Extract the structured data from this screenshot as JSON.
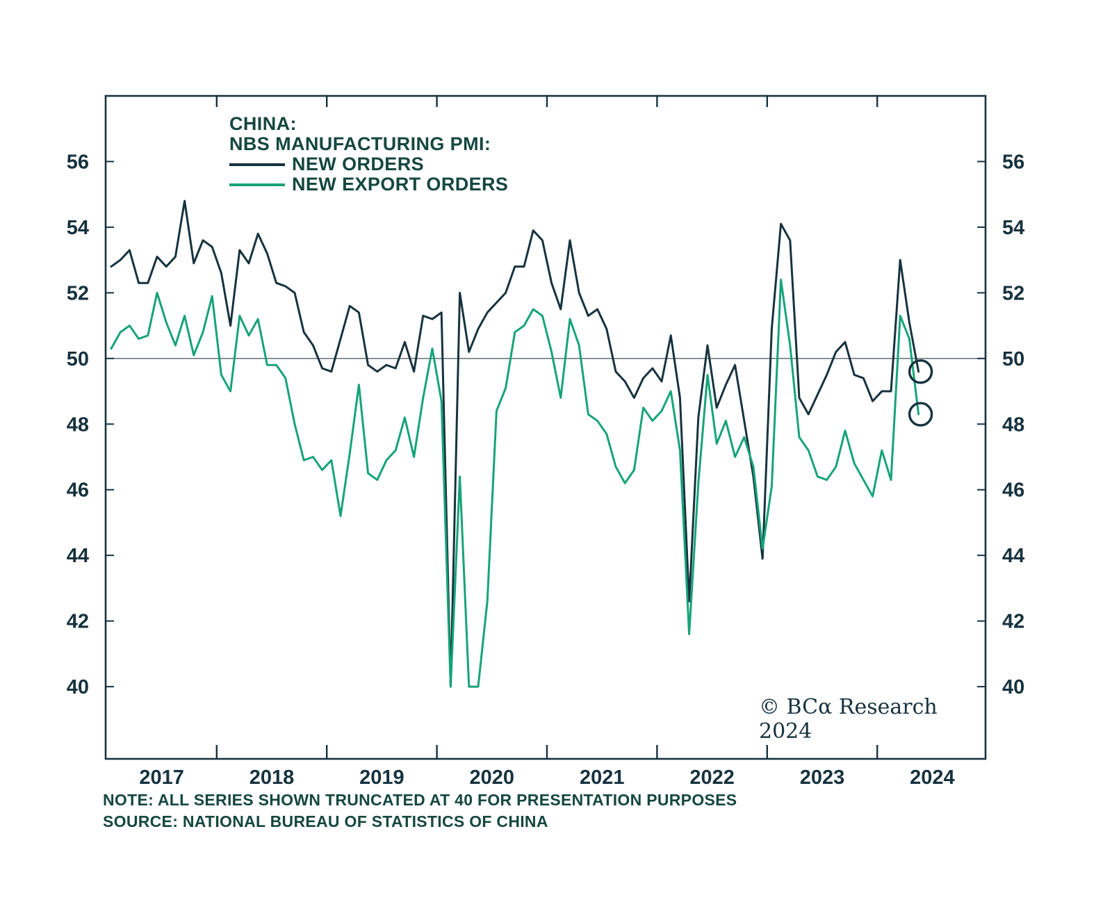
{
  "header": {
    "title_lines": [
      "CHINA:",
      "NBS MANUFACTURING PMI:"
    ]
  },
  "legend": [
    {
      "label": "NEW ORDERS",
      "color": "#16323e"
    },
    {
      "label": "NEW EXPORT ORDERS",
      "color": "#16a379"
    }
  ],
  "copyright_text": "© BCα Research 2024",
  "notes": {
    "line1": "NOTE: ALL SERIES SHOWN TRUNCATED AT 40 FOR PRESENTATION PURPOSES",
    "line2": "SOURCE: NATIONAL BUREAU OF STATISTICS OF CHINA"
  },
  "colors": {
    "new_orders_line": "#16323e",
    "new_export_orders_line": "#16a379",
    "heading_text": "#15473f",
    "axis": "#16323e",
    "reference_line": "#6e7b80"
  },
  "chart_data": {
    "type": "line",
    "title": "CHINA: NBS MANUFACTURING PMI — NEW ORDERS vs NEW EXPORT ORDERS",
    "xlabel": "",
    "ylabel": "",
    "frequency": "monthly",
    "x_start": "2017-01",
    "x_end": "2024-05",
    "x_tick_labels": [
      "2017",
      "2018",
      "2019",
      "2020",
      "2021",
      "2022",
      "2023",
      "2024"
    ],
    "y_ticks": [
      40,
      42,
      44,
      46,
      48,
      50,
      52,
      54,
      56
    ],
    "ylim": [
      37.8,
      58.0
    ],
    "reference_line": 50,
    "truncated_at": 40,
    "grid": false,
    "legend_position": "top-left-inside",
    "series": [
      {
        "name": "NEW ORDERS",
        "color": "#16323e",
        "values": [
          52.8,
          53.0,
          53.3,
          52.3,
          52.3,
          53.1,
          52.8,
          53.1,
          54.8,
          52.9,
          53.6,
          53.4,
          52.6,
          51.0,
          53.3,
          52.9,
          53.8,
          53.2,
          52.3,
          52.2,
          52.0,
          50.8,
          50.4,
          49.7,
          49.6,
          50.6,
          51.6,
          51.4,
          49.8,
          49.6,
          49.8,
          49.7,
          50.5,
          49.6,
          51.3,
          51.2,
          51.4,
          40.0,
          52.0,
          50.2,
          50.9,
          51.4,
          51.7,
          52.0,
          52.8,
          52.8,
          53.9,
          53.6,
          52.3,
          51.5,
          53.6,
          52.0,
          51.3,
          51.5,
          50.9,
          49.6,
          49.3,
          48.8,
          49.4,
          49.7,
          49.3,
          50.7,
          48.8,
          42.6,
          48.2,
          50.4,
          48.5,
          49.2,
          49.8,
          48.1,
          46.4,
          43.9,
          50.9,
          54.1,
          53.6,
          48.8,
          48.3,
          48.9,
          49.5,
          50.2,
          50.5,
          49.5,
          49.4,
          48.7,
          49.0,
          49.0,
          53.0,
          51.1,
          49.6
        ]
      },
      {
        "name": "NEW EXPORT ORDERS",
        "color": "#16a379",
        "values": [
          50.3,
          50.8,
          51.0,
          50.6,
          50.7,
          52.0,
          51.1,
          50.4,
          51.3,
          50.1,
          50.8,
          51.9,
          49.5,
          49.0,
          51.3,
          50.7,
          51.2,
          49.8,
          49.8,
          49.4,
          48.0,
          46.9,
          47.0,
          46.6,
          46.9,
          45.2,
          47.1,
          49.2,
          46.5,
          46.3,
          46.9,
          47.2,
          48.2,
          47.0,
          48.8,
          50.3,
          48.7,
          40.0,
          46.4,
          40.0,
          40.0,
          42.6,
          48.4,
          49.1,
          50.8,
          51.0,
          51.5,
          51.3,
          50.2,
          48.8,
          51.2,
          50.4,
          48.3,
          48.1,
          47.7,
          46.7,
          46.2,
          46.6,
          48.5,
          48.1,
          48.4,
          49.0,
          47.2,
          41.6,
          46.2,
          49.5,
          47.4,
          48.1,
          47.0,
          47.6,
          46.7,
          44.2,
          46.1,
          52.4,
          50.4,
          47.6,
          47.2,
          46.4,
          46.3,
          46.7,
          47.8,
          46.8,
          46.3,
          45.8,
          47.2,
          46.3,
          51.3,
          50.6,
          48.3
        ]
      }
    ],
    "annotations": [
      {
        "type": "circle",
        "series": "NEW ORDERS",
        "x": "2024-05",
        "value": 49.6
      },
      {
        "type": "circle",
        "series": "NEW EXPORT ORDERS",
        "x": "2024-05",
        "value": 48.3
      }
    ]
  }
}
